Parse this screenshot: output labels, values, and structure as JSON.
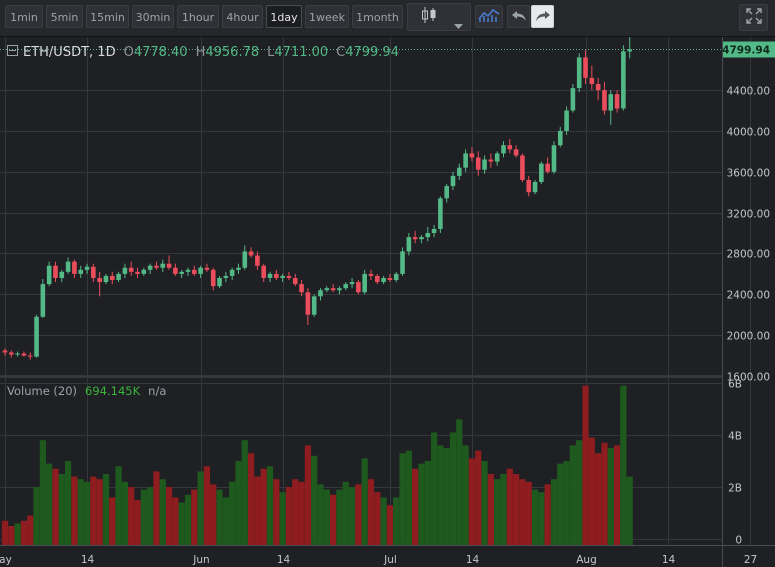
{
  "toolbar": {
    "timeframes": [
      "1min",
      "5min",
      "15min",
      "30min",
      "1hour",
      "4hour",
      "1day",
      "1week",
      "1month"
    ],
    "active_timeframe": "1day",
    "buttons": [
      "candlestick-icon",
      "dropdown-icon",
      "indicators-icon",
      "undo-icon",
      "redo-icon",
      "fullscreen-icon"
    ]
  },
  "legend": {
    "symbol": "ETH/USDT, 1D",
    "open_label": "O",
    "open": "4778.40",
    "high_label": "H",
    "high": "4956.78",
    "low_label": "L",
    "low": "4711.00",
    "close_label": "C",
    "close": "4799.94"
  },
  "volume_legend": {
    "name": "Volume (20)",
    "value": "694.145K",
    "extra": "n/a"
  },
  "colors": {
    "up": "#53b987",
    "down": "#eb4d5c",
    "vol_up": "#1e5a1e",
    "vol_down": "#8f1c1f",
    "grid": "#35373c",
    "last_price_bg": "#53b987"
  },
  "chart_data": {
    "type": "candlestick",
    "price_axis": {
      "ticks": [
        "1600.00",
        "2000.00",
        "2400.00",
        "2800.00",
        "3200.00",
        "3600.00",
        "4000.00",
        "4400.00"
      ],
      "ylim": [
        1600,
        4920
      ]
    },
    "last_price": "4799.94",
    "volume_axis": {
      "ticks": [
        "0",
        "2B",
        "4B",
        "6B"
      ],
      "ylim": [
        0,
        6
      ]
    },
    "time_axis": {
      "labels": [
        {
          "text": "ay",
          "day": 1
        },
        {
          "text": "14",
          "day": 14
        },
        {
          "text": "Jun",
          "day": 32
        },
        {
          "text": "14",
          "day": 45
        },
        {
          "text": "Jul",
          "day": 62
        },
        {
          "text": "14",
          "day": 75
        },
        {
          "text": "Aug",
          "day": 93
        },
        {
          "text": "14",
          "day": 106
        },
        {
          "text": "27",
          "day": 119
        }
      ]
    },
    "first_day": 1,
    "candles": [
      [
        1850,
        1870,
        1800,
        1830,
        0.7
      ],
      [
        1830,
        1850,
        1780,
        1810,
        0.5
      ],
      [
        1810,
        1840,
        1790,
        1820,
        0.6
      ],
      [
        1820,
        1840,
        1790,
        1800,
        0.7
      ],
      [
        1800,
        1830,
        1760,
        1790,
        0.9
      ],
      [
        1790,
        2200,
        1780,
        2180,
        2.0
      ],
      [
        2180,
        2550,
        2170,
        2500,
        3.8
      ],
      [
        2500,
        2720,
        2480,
        2680,
        2.9
      ],
      [
        2680,
        2720,
        2520,
        2560,
        2.7
      ],
      [
        2560,
        2640,
        2520,
        2620,
        2.5
      ],
      [
        2620,
        2760,
        2600,
        2720,
        3.0
      ],
      [
        2720,
        2740,
        2560,
        2600,
        2.4
      ],
      [
        2600,
        2680,
        2560,
        2640,
        2.3
      ],
      [
        2640,
        2700,
        2600,
        2670,
        2.2
      ],
      [
        2670,
        2700,
        2520,
        2560,
        2.4
      ],
      [
        2560,
        2620,
        2380,
        2520,
        2.3
      ],
      [
        2520,
        2600,
        2500,
        2580,
        2.5
      ],
      [
        2580,
        2620,
        2500,
        2540,
        1.6
      ],
      [
        2540,
        2620,
        2520,
        2600,
        2.8
      ],
      [
        2600,
        2700,
        2560,
        2660,
        2.2
      ],
      [
        2660,
        2720,
        2580,
        2620,
        2.0
      ],
      [
        2620,
        2660,
        2560,
        2600,
        1.5
      ],
      [
        2600,
        2660,
        2580,
        2640,
        1.9
      ],
      [
        2640,
        2700,
        2600,
        2680,
        2.0
      ],
      [
        2680,
        2720,
        2640,
        2660,
        2.6
      ],
      [
        2660,
        2740,
        2620,
        2700,
        2.3
      ],
      [
        2700,
        2780,
        2640,
        2660,
        2.0
      ],
      [
        2660,
        2700,
        2580,
        2600,
        1.6
      ],
      [
        2600,
        2640,
        2560,
        2620,
        1.4
      ],
      [
        2620,
        2660,
        2580,
        2640,
        1.7
      ],
      [
        2640,
        2680,
        2580,
        2600,
        1.9
      ],
      [
        2600,
        2680,
        2560,
        2660,
        2.6
      ],
      [
        2660,
        2700,
        2620,
        2640,
        2.8
      ],
      [
        2640,
        2660,
        2440,
        2480,
        2.1
      ],
      [
        2480,
        2580,
        2460,
        2560,
        1.9
      ],
      [
        2560,
        2620,
        2520,
        2580,
        1.6
      ],
      [
        2580,
        2660,
        2540,
        2640,
        2.2
      ],
      [
        2640,
        2700,
        2600,
        2660,
        3.0
      ],
      [
        2660,
        2880,
        2640,
        2820,
        3.8
      ],
      [
        2820,
        2860,
        2760,
        2780,
        3.3
      ],
      [
        2780,
        2820,
        2640,
        2680,
        2.4
      ],
      [
        2680,
        2700,
        2520,
        2560,
        2.7
      ],
      [
        2560,
        2620,
        2520,
        2600,
        2.8
      ],
      [
        2600,
        2640,
        2540,
        2560,
        2.3
      ],
      [
        2560,
        2600,
        2520,
        2580,
        1.8
      ],
      [
        2580,
        2620,
        2540,
        2560,
        2.0
      ],
      [
        2560,
        2600,
        2480,
        2500,
        2.3
      ],
      [
        2500,
        2540,
        2380,
        2420,
        2.2
      ],
      [
        2420,
        2460,
        2100,
        2200,
        3.6
      ],
      [
        2200,
        2400,
        2180,
        2380,
        3.2
      ],
      [
        2380,
        2460,
        2340,
        2440,
        2.1
      ],
      [
        2440,
        2480,
        2420,
        2460,
        1.9
      ],
      [
        2460,
        2500,
        2420,
        2440,
        1.7
      ],
      [
        2440,
        2480,
        2400,
        2460,
        1.9
      ],
      [
        2460,
        2520,
        2440,
        2500,
        2.2
      ],
      [
        2500,
        2560,
        2460,
        2520,
        2.0
      ],
      [
        2520,
        2540,
        2400,
        2420,
        2.1
      ],
      [
        2420,
        2640,
        2400,
        2600,
        3.1
      ],
      [
        2600,
        2640,
        2540,
        2580,
        2.3
      ],
      [
        2580,
        2600,
        2500,
        2520,
        1.8
      ],
      [
        2520,
        2580,
        2500,
        2560,
        1.6
      ],
      [
        2560,
        2600,
        2520,
        2540,
        1.3
      ],
      [
        2540,
        2620,
        2520,
        2600,
        1.6
      ],
      [
        2600,
        2860,
        2580,
        2820,
        3.3
      ],
      [
        2820,
        3000,
        2780,
        2960,
        3.4
      ],
      [
        2960,
        3020,
        2900,
        2940,
        2.7
      ],
      [
        2940,
        2980,
        2900,
        2960,
        2.9
      ],
      [
        2960,
        3060,
        2920,
        3000,
        3.0
      ],
      [
        3000,
        3080,
        2960,
        3040,
        4.1
      ],
      [
        3040,
        3360,
        3000,
        3340,
        3.6
      ],
      [
        3340,
        3480,
        3300,
        3460,
        3.5
      ],
      [
        3460,
        3600,
        3420,
        3560,
        4.1
      ],
      [
        3560,
        3680,
        3520,
        3640,
        4.6
      ],
      [
        3640,
        3820,
        3600,
        3780,
        3.6
      ],
      [
        3780,
        3840,
        3700,
        3740,
        3.1
      ],
      [
        3740,
        3800,
        3560,
        3620,
        3.4
      ],
      [
        3620,
        3760,
        3580,
        3720,
        3.0
      ],
      [
        3720,
        3780,
        3640,
        3700,
        2.5
      ],
      [
        3700,
        3800,
        3660,
        3780,
        2.3
      ],
      [
        3780,
        3900,
        3740,
        3860,
        2.5
      ],
      [
        3860,
        3920,
        3780,
        3820,
        2.7
      ],
      [
        3820,
        3860,
        3740,
        3760,
        2.5
      ],
      [
        3760,
        3780,
        3500,
        3520,
        2.3
      ],
      [
        3520,
        3560,
        3360,
        3400,
        2.2
      ],
      [
        3400,
        3520,
        3380,
        3500,
        1.9
      ],
      [
        3500,
        3700,
        3480,
        3680,
        1.8
      ],
      [
        3680,
        3740,
        3580,
        3600,
        2.1
      ],
      [
        3600,
        3900,
        3580,
        3860,
        2.3
      ],
      [
        3860,
        4040,
        3840,
        4000,
        2.9
      ],
      [
        4000,
        4240,
        3960,
        4200,
        3.0
      ],
      [
        4200,
        4460,
        4180,
        4420,
        3.6
      ],
      [
        4420,
        4760,
        4380,
        4720,
        3.8
      ],
      [
        4720,
        4800,
        4460,
        4520,
        5.9
      ],
      [
        4520,
        4640,
        4400,
        4460,
        3.9
      ],
      [
        4460,
        4520,
        4300,
        4400,
        3.3
      ],
      [
        4400,
        4480,
        4160,
        4200,
        3.7
      ],
      [
        4200,
        4400,
        4060,
        4360,
        3.5
      ],
      [
        4360,
        4400,
        4180,
        4220,
        3.6
      ],
      [
        4220,
        4840,
        4200,
        4780,
        5.9
      ],
      [
        4778.4,
        4956.78,
        4711,
        4799.94,
        2.4
      ]
    ]
  }
}
